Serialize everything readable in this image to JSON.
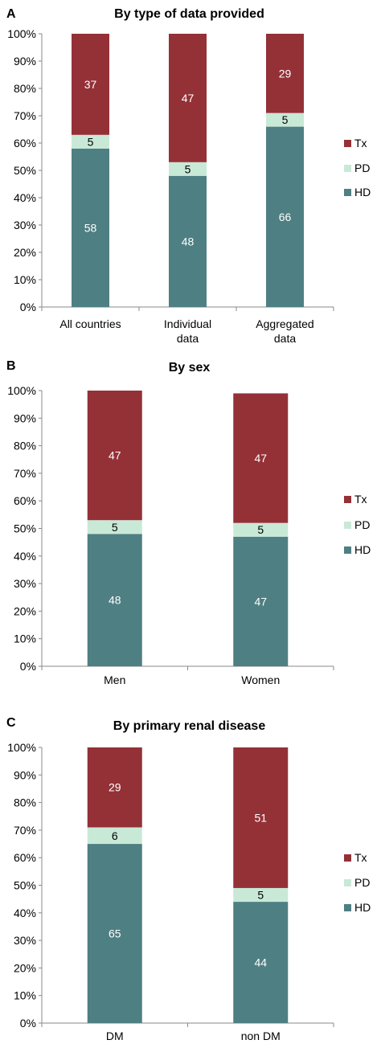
{
  "colors": {
    "HD": "#4e7f83",
    "PD": "#c9e9d7",
    "Tx": "#943137",
    "label_on_dark": "#ffffff",
    "label_on_light": "#000000",
    "axis": "#8a8a8a"
  },
  "legend_items": [
    {
      "key": "Tx",
      "label": "Tx"
    },
    {
      "key": "PD",
      "label": "PD"
    },
    {
      "key": "HD",
      "label": "HD"
    }
  ],
  "chart_data": [
    {
      "panel_letter": "A",
      "type": "bar",
      "stacked": true,
      "title": "By type of data provided",
      "ylim": [
        0,
        100
      ],
      "yticks": [
        "0%",
        "10%",
        "20%",
        "30%",
        "40%",
        "50%",
        "60%",
        "70%",
        "80%",
        "90%",
        "100%"
      ],
      "categories": [
        [
          "All countries"
        ],
        [
          "Individual",
          "data"
        ],
        [
          "Aggregated",
          "data"
        ]
      ],
      "series": [
        {
          "name": "HD",
          "values": [
            58,
            48,
            66
          ]
        },
        {
          "name": "PD",
          "values": [
            5,
            5,
            5
          ]
        },
        {
          "name": "Tx",
          "values": [
            37,
            47,
            29
          ]
        }
      ],
      "legend": "right"
    },
    {
      "panel_letter": "B",
      "type": "bar",
      "stacked": true,
      "title": "By sex",
      "ylim": [
        0,
        100
      ],
      "yticks": [
        "0%",
        "10%",
        "20%",
        "30%",
        "40%",
        "50%",
        "60%",
        "70%",
        "80%",
        "90%",
        "100%"
      ],
      "categories": [
        [
          "Men"
        ],
        [
          "Women"
        ]
      ],
      "series": [
        {
          "name": "HD",
          "values": [
            48,
            47
          ]
        },
        {
          "name": "PD",
          "values": [
            5,
            5
          ]
        },
        {
          "name": "Tx",
          "values": [
            47,
            47
          ]
        }
      ],
      "legend": "right"
    },
    {
      "panel_letter": "C",
      "type": "bar",
      "stacked": true,
      "title": "By primary renal disease",
      "ylim": [
        0,
        100
      ],
      "yticks": [
        "0%",
        "10%",
        "20%",
        "30%",
        "40%",
        "50%",
        "60%",
        "70%",
        "80%",
        "90%",
        "100%"
      ],
      "categories": [
        [
          "DM"
        ],
        [
          "non DM"
        ]
      ],
      "series": [
        {
          "name": "HD",
          "values": [
            65,
            44
          ]
        },
        {
          "name": "PD",
          "values": [
            6,
            5
          ]
        },
        {
          "name": "Tx",
          "values": [
            29,
            51
          ]
        }
      ],
      "legend": "right"
    }
  ]
}
